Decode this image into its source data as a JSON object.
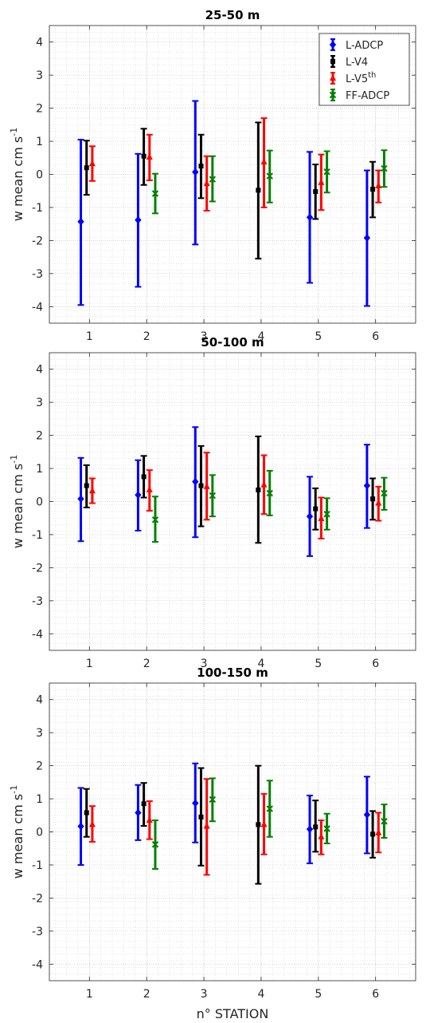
{
  "figure": {
    "xlabel": "n° STATION",
    "ylabel_main": "w mean cm s",
    "ylabel_exp": "-1"
  },
  "legend": {
    "placement": "top-right",
    "entries": [
      {
        "label": "L-ADCP",
        "sup": "",
        "color": "#0000ff",
        "marker": "diamond"
      },
      {
        "label": "L-V4",
        "sup": "",
        "color": "#000000",
        "marker": "square"
      },
      {
        "label": "L-V5",
        "sup": "th",
        "color": "#ff0000",
        "marker": "triangle"
      },
      {
        "label": "FF-ADCP",
        "sup": "",
        "color": "#008000",
        "marker": "x"
      }
    ]
  },
  "chart_data": [
    {
      "type": "errorbar",
      "title": "25-50 m",
      "xlabel": "",
      "ylabel": "w mean cm s-1",
      "xlim": [
        0.3,
        6.7
      ],
      "ylim": [
        -4.5,
        4.5
      ],
      "xticks": [
        1,
        2,
        3,
        4,
        5,
        6
      ],
      "yticks": [
        -4,
        -3,
        -2,
        -1,
        0,
        1,
        2,
        3,
        4
      ],
      "grid": "minor dotted",
      "legend": "top-right",
      "categories": [
        1,
        2,
        3,
        4,
        5,
        6
      ],
      "series": [
        {
          "name": "L-ADCP",
          "offset": -0.15,
          "mean": [
            -1.43,
            -1.38,
            0.07,
            null,
            -1.3,
            -1.92
          ],
          "lower": [
            -3.95,
            -3.4,
            -2.12,
            null,
            -3.28,
            -3.98
          ],
          "upper": [
            1.05,
            0.62,
            2.22,
            null,
            0.68,
            0.12
          ]
        },
        {
          "name": "L-V4",
          "offset": -0.05,
          "mean": [
            0.2,
            0.55,
            0.25,
            -0.48,
            -0.52,
            -0.45
          ],
          "lower": [
            -0.62,
            -0.32,
            -0.72,
            -2.55,
            -1.35,
            -1.3
          ],
          "upper": [
            1.02,
            1.38,
            1.2,
            1.57,
            0.3,
            0.38
          ]
        },
        {
          "name": "L-V5th",
          "offset": 0.05,
          "mean": [
            0.32,
            0.52,
            -0.28,
            0.37,
            -0.25,
            -0.35
          ],
          "lower": [
            -0.2,
            -0.18,
            -1.1,
            -1.0,
            -1.08,
            -0.85
          ],
          "upper": [
            0.85,
            1.2,
            0.55,
            1.7,
            0.6,
            0.12
          ]
        },
        {
          "name": "FF-ADCP",
          "offset": 0.15,
          "mean": [
            null,
            -0.58,
            -0.15,
            -0.05,
            0.08,
            0.18
          ],
          "lower": [
            null,
            -1.18,
            -0.82,
            -0.85,
            -0.55,
            -0.38
          ],
          "upper": [
            null,
            0.02,
            0.55,
            0.72,
            0.7,
            0.73
          ]
        }
      ]
    },
    {
      "type": "errorbar",
      "title": "50-100 m",
      "xlabel": "",
      "ylabel": "w mean cm s-1",
      "xlim": [
        0.3,
        6.7
      ],
      "ylim": [
        -4.5,
        4.5
      ],
      "xticks": [
        1,
        2,
        3,
        4,
        5,
        6
      ],
      "yticks": [
        -4,
        -3,
        -2,
        -1,
        0,
        1,
        2,
        3,
        4
      ],
      "grid": "minor dotted",
      "categories": [
        1,
        2,
        3,
        4,
        5,
        6
      ],
      "series": [
        {
          "name": "L-ADCP",
          "offset": -0.15,
          "mean": [
            0.08,
            0.2,
            0.6,
            null,
            -0.45,
            0.48
          ],
          "lower": [
            -1.2,
            -0.88,
            -1.08,
            null,
            -1.65,
            -0.8
          ],
          "upper": [
            1.32,
            1.25,
            2.25,
            null,
            0.75,
            1.72
          ]
        },
        {
          "name": "L-V4",
          "offset": -0.05,
          "mean": [
            0.48,
            0.75,
            0.48,
            0.35,
            -0.22,
            0.08
          ],
          "lower": [
            -0.18,
            0.12,
            -0.75,
            -1.25,
            -0.85,
            -0.55
          ],
          "upper": [
            1.1,
            1.38,
            1.68,
            1.97,
            0.4,
            0.7
          ]
        },
        {
          "name": "L-V5th",
          "offset": 0.05,
          "mean": [
            0.32,
            0.35,
            0.45,
            0.5,
            -0.52,
            -0.05
          ],
          "lower": [
            -0.05,
            -0.28,
            -0.55,
            -0.38,
            -1.12,
            -0.58
          ],
          "upper": [
            0.7,
            0.95,
            1.48,
            1.4,
            0.12,
            0.45
          ]
        },
        {
          "name": "FF-ADCP",
          "offset": 0.15,
          "mean": [
            null,
            -0.55,
            0.18,
            0.25,
            -0.38,
            0.25
          ],
          "lower": [
            null,
            -1.22,
            -0.45,
            -0.42,
            -0.85,
            -0.25
          ],
          "upper": [
            null,
            0.15,
            0.8,
            0.93,
            0.1,
            0.72
          ]
        }
      ]
    },
    {
      "type": "errorbar",
      "title": "100-150 m",
      "xlabel": "n° STATION",
      "ylabel": "w mean cm s-1",
      "xlim": [
        0.3,
        6.7
      ],
      "ylim": [
        -4.5,
        4.5
      ],
      "xticks": [
        1,
        2,
        3,
        4,
        5,
        6
      ],
      "yticks": [
        -4,
        -3,
        -2,
        -1,
        0,
        1,
        2,
        3,
        4
      ],
      "grid": "minor dotted",
      "categories": [
        1,
        2,
        3,
        4,
        5,
        6
      ],
      "series": [
        {
          "name": "L-ADCP",
          "offset": -0.15,
          "mean": [
            0.17,
            0.58,
            0.87,
            null,
            0.08,
            0.52
          ],
          "lower": [
            -1.0,
            -0.25,
            -0.32,
            null,
            -0.95,
            -0.65
          ],
          "upper": [
            1.33,
            1.42,
            2.07,
            null,
            1.1,
            1.67
          ]
        },
        {
          "name": "L-V4",
          "offset": -0.05,
          "mean": [
            0.58,
            0.85,
            0.45,
            0.22,
            0.15,
            -0.07
          ],
          "lower": [
            -0.15,
            0.18,
            -1.02,
            -1.57,
            -0.6,
            -0.78
          ],
          "upper": [
            1.3,
            1.48,
            1.93,
            2.0,
            0.95,
            0.63
          ]
        },
        {
          "name": "L-V5th",
          "offset": 0.05,
          "mean": [
            0.22,
            0.35,
            0.17,
            0.22,
            -0.15,
            -0.03
          ],
          "lower": [
            -0.3,
            -0.22,
            -1.3,
            -0.68,
            -0.68,
            -0.62
          ],
          "upper": [
            0.78,
            0.93,
            1.6,
            1.15,
            0.35,
            0.58
          ]
        },
        {
          "name": "FF-ADCP",
          "offset": 0.15,
          "mean": [
            null,
            -0.38,
            0.98,
            0.7,
            0.1,
            0.32
          ],
          "lower": [
            null,
            -1.12,
            0.32,
            -0.15,
            -0.35,
            -0.18
          ],
          "upper": [
            null,
            0.35,
            1.62,
            1.55,
            0.55,
            0.83
          ]
        }
      ]
    }
  ]
}
